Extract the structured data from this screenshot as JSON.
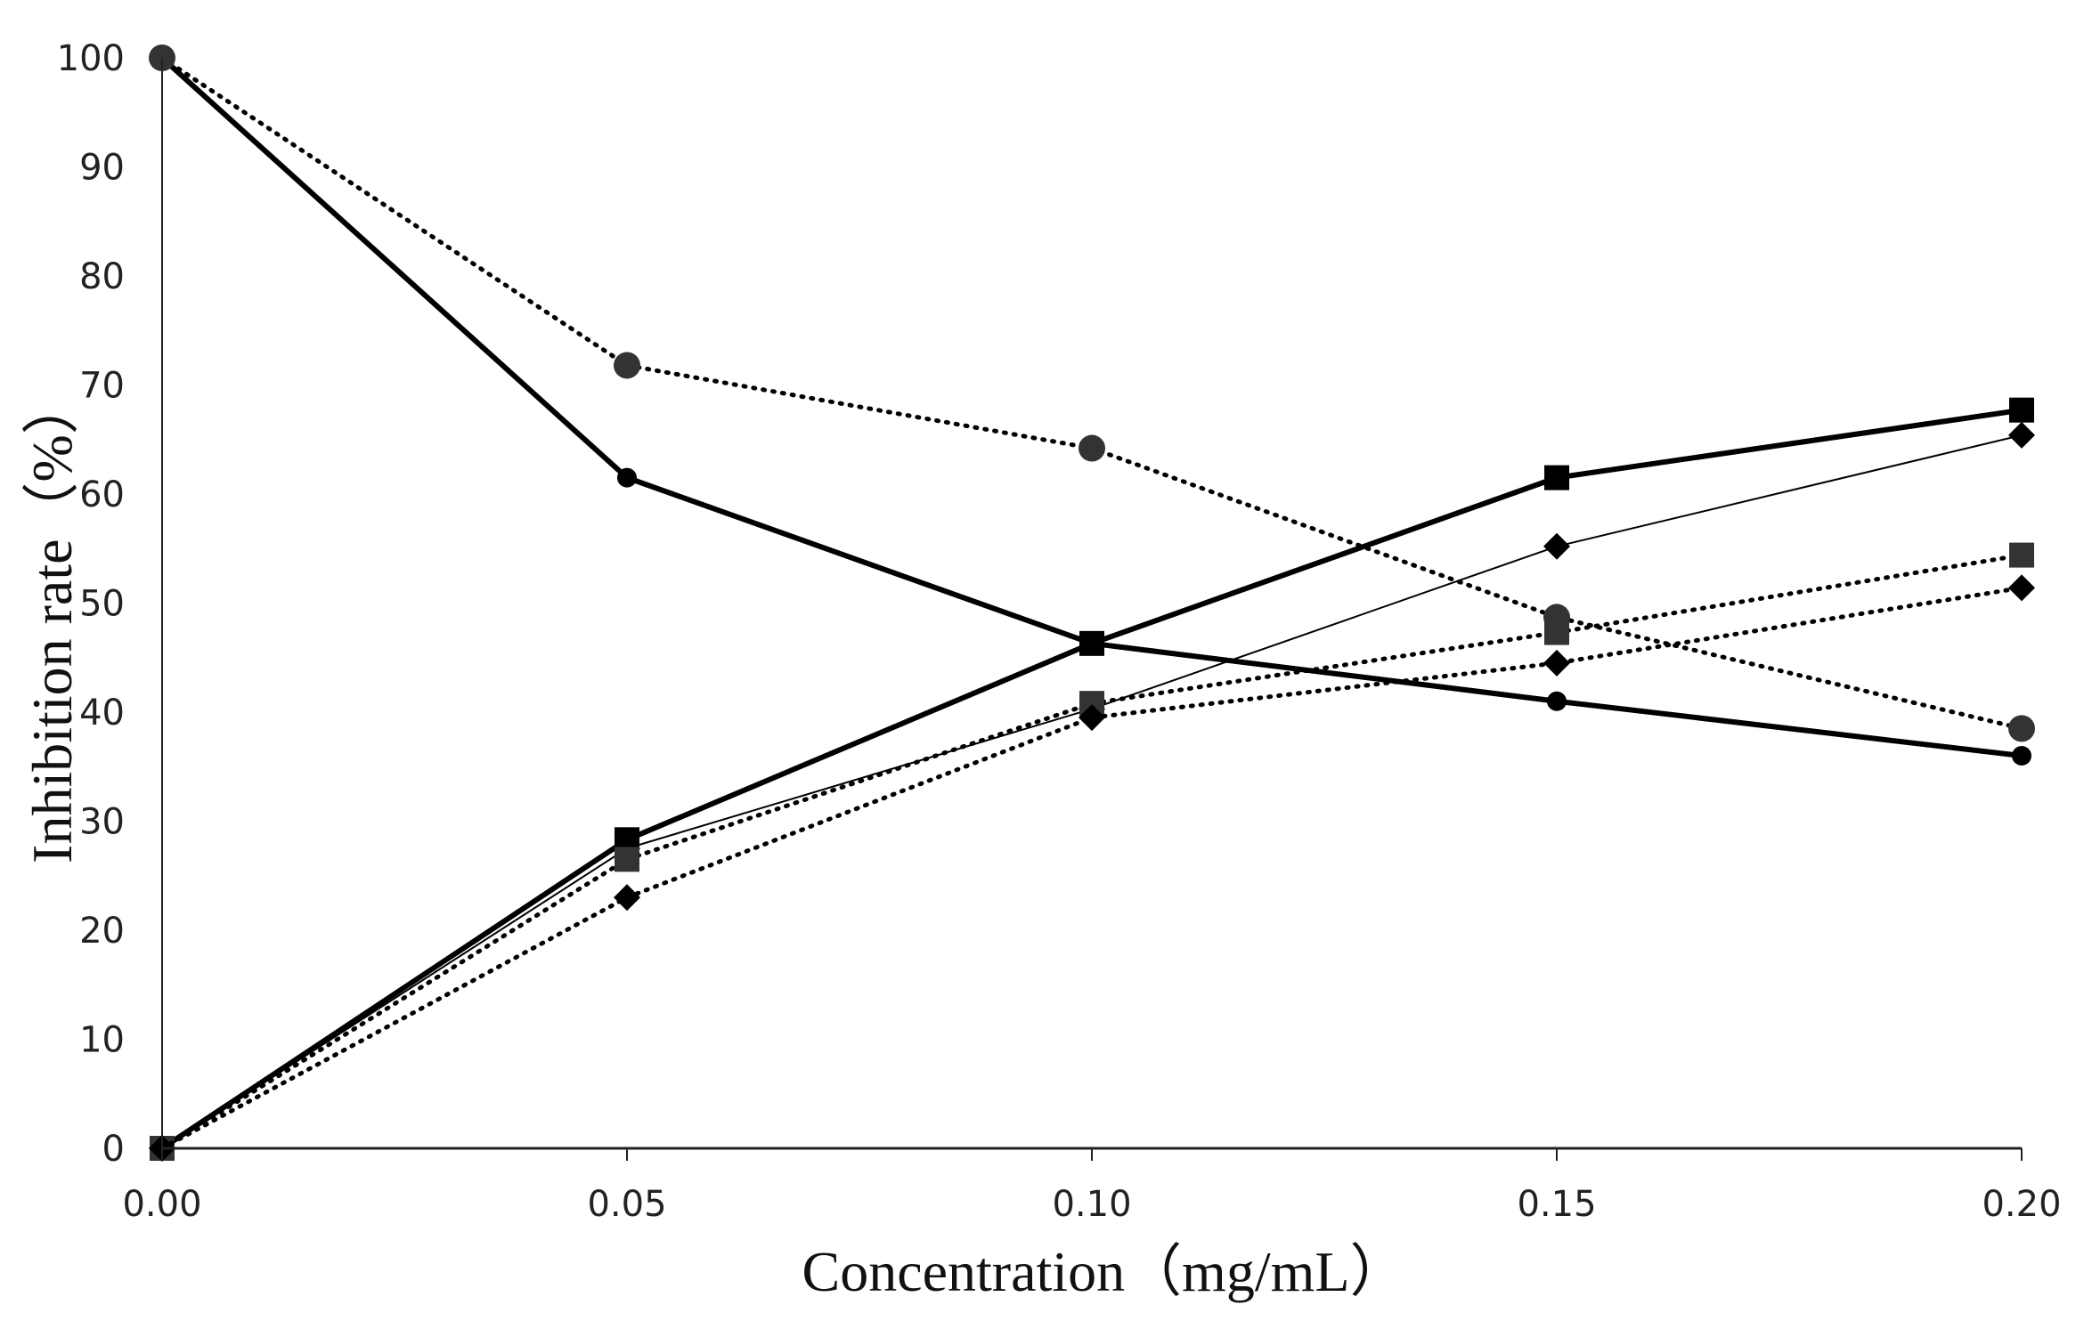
{
  "chart_data": {
    "type": "line",
    "title": "",
    "xlabel": "Concentration（mg/mL）",
    "ylabel": "Inhibition rate（%）",
    "x": [
      0.0,
      0.05,
      0.1,
      0.15,
      0.2
    ],
    "x_tick_labels": [
      "0.00",
      "0.05",
      "0.10",
      "0.15",
      "0.20"
    ],
    "y_ticks": [
      0,
      10,
      20,
      30,
      40,
      50,
      60,
      70,
      80,
      90,
      100
    ],
    "xlim": [
      0,
      0.2
    ],
    "ylim": [
      0,
      100
    ],
    "grid": false,
    "legend": "none",
    "series": [
      {
        "name": "circle-solid",
        "marker": "circle-small",
        "line": "solid-thick",
        "values": [
          100,
          61.5,
          46.3,
          41.0,
          36.0
        ]
      },
      {
        "name": "circle-dotted",
        "marker": "circle",
        "line": "dotted",
        "values": [
          100,
          71.8,
          64.2,
          48.7,
          38.5
        ]
      },
      {
        "name": "square-solid",
        "marker": "square",
        "line": "solid-thick",
        "values": [
          0,
          28.3,
          46.3,
          61.5,
          67.7
        ]
      },
      {
        "name": "diamond-solid",
        "marker": "diamond",
        "line": "solid-thin",
        "values": [
          0,
          27.5,
          40.3,
          55.2,
          65.4
        ]
      },
      {
        "name": "square-dotted",
        "marker": "square",
        "line": "dotted",
        "values": [
          0,
          26.5,
          40.8,
          47.3,
          54.4
        ]
      },
      {
        "name": "diamond-dotted",
        "marker": "diamond",
        "line": "dotted",
        "values": [
          0,
          23.0,
          39.5,
          44.5,
          51.4
        ]
      }
    ],
    "colors": {
      "line": "#000000",
      "marker": "#000000",
      "axis": "#222222"
    }
  }
}
